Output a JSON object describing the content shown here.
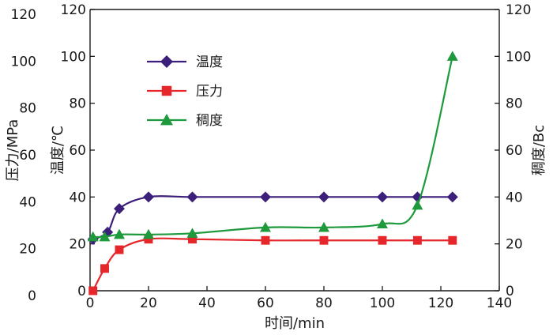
{
  "chart_data": {
    "type": "line",
    "x_axis": {
      "label": "时间/min",
      "range": [
        0,
        140
      ],
      "ticks": [
        0,
        20,
        40,
        60,
        80,
        100,
        120,
        140
      ]
    },
    "y_axes": {
      "outer_left": {
        "label": "压力/MPa",
        "range": [
          0,
          120
        ],
        "ticks": [
          0,
          20,
          40,
          60,
          80,
          100,
          120
        ]
      },
      "inner_left": {
        "label": "温度/℃",
        "range": [
          0,
          120
        ],
        "ticks": [
          0,
          20,
          40,
          60,
          80,
          100,
          120
        ]
      },
      "right": {
        "label": "稠度/Bc",
        "range": [
          0,
          120
        ],
        "ticks": [
          0,
          20,
          40,
          60,
          80,
          100,
          120
        ]
      }
    },
    "legend_position": "top-left",
    "grid": false,
    "series": [
      {
        "name": "温度",
        "axis": "inner_left",
        "color": "#3b1f7a",
        "marker": "diamond",
        "points": [
          [
            1,
            22
          ],
          [
            6,
            25
          ],
          [
            10,
            35
          ],
          [
            20,
            40
          ],
          [
            35,
            40
          ],
          [
            60,
            40
          ],
          [
            80,
            40
          ],
          [
            100,
            40
          ],
          [
            112,
            40
          ],
          [
            124,
            40
          ]
        ]
      },
      {
        "name": "压力",
        "axis": "outer_left",
        "color": "#e5262b",
        "marker": "square",
        "points": [
          [
            1,
            0
          ],
          [
            5,
            9.5
          ],
          [
            10,
            17.5
          ],
          [
            20,
            22
          ],
          [
            35,
            22
          ],
          [
            60,
            21.5
          ],
          [
            80,
            21.5
          ],
          [
            100,
            21.5
          ],
          [
            112,
            21.5
          ],
          [
            124,
            21.5
          ]
        ]
      },
      {
        "name": "稠度",
        "axis": "right",
        "color": "#1e9a3c",
        "marker": "triangle",
        "points": [
          [
            1,
            23
          ],
          [
            5,
            23
          ],
          [
            10,
            24
          ],
          [
            20,
            24
          ],
          [
            35,
            24.5
          ],
          [
            60,
            27
          ],
          [
            80,
            27
          ],
          [
            100,
            28.5
          ],
          [
            112,
            36.5
          ],
          [
            124,
            100
          ]
        ]
      }
    ]
  }
}
